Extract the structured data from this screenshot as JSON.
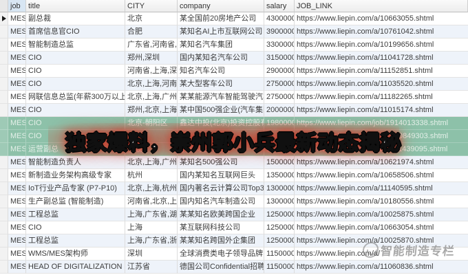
{
  "banner": {
    "text": "独家爆料，崇州郭小兵最新动态揭秘",
    "text_color": "#ffffff",
    "glow_color": "#cd3728"
  },
  "watermark": {
    "text": "智能制造专栏",
    "icon": "circle-hand-logo"
  },
  "colors": {
    "highlight_row": "#8dc1a9",
    "alt_row": "#eef3fa",
    "header_selected_col": "#d8e6f3",
    "gridline": "#dcdcdc"
  },
  "table": {
    "headers": {
      "job": "job",
      "title": "title",
      "city": "CITY",
      "company": "company",
      "salary": "salary",
      "link": "JOB_LINK"
    },
    "active_row_index": 0,
    "highlight_rows": [
      8,
      9,
      10
    ],
    "rows": [
      {
        "job": "MES",
        "title": "副总裁",
        "city": "北京",
        "company": "某全国前20房地产公司",
        "salary": "4300000",
        "link": "https://www.liepin.com/a/10663055.shtml"
      },
      {
        "job": "MES",
        "title": "首席信息官CIO",
        "city": "合肥",
        "company": "某知名AI上市互联网公司",
        "salary": "3900000",
        "link": "https://www.liepin.com/a/10761042.shtml"
      },
      {
        "job": "MES",
        "title": "智能制造总监",
        "city": "广东省,河南省,江苏省",
        "company": "某知名汽车集团",
        "salary": "3300000",
        "link": "https://www.liepin.com/a/10199656.shtml"
      },
      {
        "job": "MES",
        "title": "CIO",
        "city": "郑州,深圳",
        "company": "国内某知名汽车公司",
        "salary": "3150000",
        "link": "https://www.liepin.com/a/11041728.shtml"
      },
      {
        "job": "MES",
        "title": "CIO",
        "city": "河南省,上海,深圳",
        "company": "知名汽车公司",
        "salary": "2900000",
        "link": "https://www.liepin.com/a/11152851.shtml"
      },
      {
        "job": "MES",
        "title": "CIO",
        "city": "北京,上海,河南省",
        "company": "某大型客车公司",
        "salary": "2750000",
        "link": "https://www.liepin.com/a/11035520.shtml"
      },
      {
        "job": "MES",
        "title": "网联信息总监(年薪300万以上)",
        "city": "北京,上海,广州",
        "company": "某某能源汽车智能驾驶汽车制造商",
        "salary": "2750000",
        "link": "https://www.liepin.com/a/11182265.shtml"
      },
      {
        "job": "MES",
        "title": "CIO",
        "city": "郑州,北京,上海",
        "company": "某中国500强企业(汽车集团)",
        "salary": "2000000",
        "link": "https://www.liepin.com/a/11015174.shtml"
      },
      {
        "job": "MES",
        "title": "CIO",
        "city": "北京-朝阳区",
        "company": "鑫达中投(北京)投资控股有限公司",
        "salary": "1980000",
        "link": "https://www.liepin.com/job/1914013338.shtml"
      },
      {
        "job": "MES",
        "title": "CIO",
        "city": "",
        "company": "",
        "salary": "",
        "link": "https://www.liepin.com/job/1910849303.shtml"
      },
      {
        "job": "MES",
        "title": "运营副总",
        "city": "宁波",
        "company": "宁波均胜电子",
        "salary": "1620000",
        "link": "https://www.liepin.com/job/1911439095.shtml"
      },
      {
        "job": "MES",
        "title": "智能制造负责人",
        "city": "北京,上海,广州",
        "company": "某知名500强公司",
        "salary": "1500000",
        "link": "https://www.liepin.com/a/10621974.shtml"
      },
      {
        "job": "MES",
        "title": "新制造业务架构高级专家",
        "city": "杭州",
        "company": "国内某知名互联网巨头",
        "salary": "1350000",
        "link": "https://www.liepin.com/a/10658506.shtml"
      },
      {
        "job": "MES",
        "title": "IoT行业产品专家 (P7-P10)",
        "city": "北京,上海,杭州",
        "company": "国内著名云计算公司Top3",
        "salary": "1300000",
        "link": "https://www.liepin.com/a/11140595.shtml"
      },
      {
        "job": "MES",
        "title": "生产副总监 (智能制造)",
        "city": "河南省,北京,上海",
        "company": "国内知名汽车制造公司",
        "salary": "1300000",
        "link": "https://www.liepin.com/a/10180556.shtml"
      },
      {
        "job": "MES",
        "title": "工程总监",
        "city": "上海,广东省,湖北省",
        "company": "某某知名欧美跨国企业",
        "salary": "1250000",
        "link": "https://www.liepin.com/a/10025875.shtml"
      },
      {
        "job": "MES",
        "title": "CIO",
        "city": "上海",
        "company": "某互联网科技公司",
        "salary": "1250000",
        "link": "https://www.liepin.com/a/10663054.shtml"
      },
      {
        "job": "MES",
        "title": "工程总监",
        "city": "上海,广东省,浙江省",
        "company": "某某知名跨国外企集团",
        "salary": "1250000",
        "link": "https://www.liepin.com/a/10025870.shtml"
      },
      {
        "job": "MES",
        "title": "WMS/MES架构师",
        "city": "深圳",
        "company": "全球消费类电子领导品牌",
        "salary": "1150000",
        "link": "https://www.liepin.com/a/"
      },
      {
        "job": "MES",
        "title": "HEAD OF DIGITALIZATION",
        "city": "江苏省",
        "company": "德国公司Confidential招聘",
        "salary": "1150000",
        "link": "https://www.liepin.com/a/11060836.shtml"
      }
    ]
  }
}
